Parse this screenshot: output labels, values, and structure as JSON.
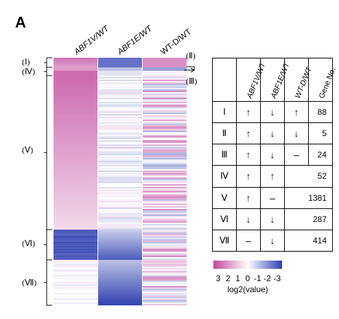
{
  "panel_label": "A",
  "chart_data": {
    "type": "heatmap",
    "columns": [
      "ABF1V/WT",
      "ABF1E/WT",
      "WT-D/WT"
    ],
    "clusters": [
      {
        "id": "(Ⅰ)",
        "ABF1V/WT": "↑",
        "ABF1E/WT": "↓",
        "WT-D/WT": "↑",
        "gene_no": 88
      },
      {
        "id": "(Ⅱ)",
        "ABF1V/WT": "↑",
        "ABF1E/WT": "↓",
        "WT-D/WT": "↓",
        "gene_no": 5
      },
      {
        "id": "(Ⅲ)",
        "ABF1V/WT": "↑",
        "ABF1E/WT": "↓",
        "WT-D/WT": "–",
        "gene_no": 24
      },
      {
        "id": "(Ⅳ)",
        "ABF1V/WT": "↑",
        "ABF1E/WT": "↑",
        "WT-D/WT": "",
        "gene_no": 52
      },
      {
        "id": "(Ⅴ)",
        "ABF1V/WT": "↑",
        "ABF1E/WT": "–",
        "WT-D/WT": "",
        "gene_no": 1381
      },
      {
        "id": "(Ⅵ)",
        "ABF1V/WT": "↓",
        "ABF1E/WT": "↓",
        "WT-D/WT": "",
        "gene_no": 287
      },
      {
        "id": "(Ⅶ)",
        "ABF1V/WT": "–",
        "ABF1E/WT": "↓",
        "WT-D/WT": "",
        "gene_no": 414
      }
    ],
    "colorbar": {
      "ticks": [
        "3",
        "2",
        "1",
        "0",
        "-1",
        "-2",
        "-3"
      ],
      "label": "log2(value)",
      "low_color": "#c0469c",
      "mid_color": "#ffffff",
      "high_color": "#2f3fb0"
    }
  },
  "table": {
    "headers": [
      "ABF1V/WT",
      "ABF1E/WT",
      "WT-D/WT",
      "Gene No."
    ],
    "rows": [
      {
        "label": "Ⅰ",
        "c1": "↑",
        "c2": "↓",
        "c3": "↑",
        "n": "88"
      },
      {
        "label": "Ⅱ",
        "c1": "↑",
        "c2": "↓",
        "c3": "↓",
        "n": "5"
      },
      {
        "label": "Ⅲ",
        "c1": "↑",
        "c2": "↓",
        "c3": "–",
        "n": "24"
      },
      {
        "label": "Ⅳ",
        "c1": "↑",
        "c2": "↑",
        "n": "52"
      },
      {
        "label": "Ⅴ",
        "c1": "↑",
        "c2": "–",
        "n": "1381"
      },
      {
        "label": "Ⅵ",
        "c1": "↓",
        "c2": "↓",
        "n": "287"
      },
      {
        "label": "Ⅶ",
        "c1": "–",
        "c2": "↓",
        "n": "414"
      }
    ]
  }
}
